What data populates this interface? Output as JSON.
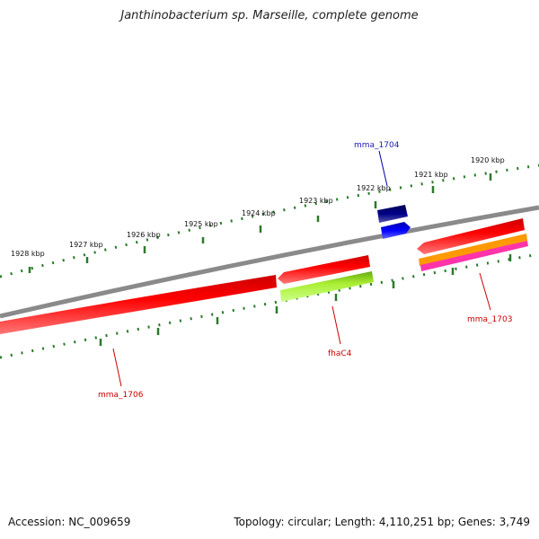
{
  "title": "Janthinobacterium sp. Marseille, complete genome",
  "footer": {
    "accession": "Accession: NC_009659",
    "summary": "Topology: circular; Length: 4,110,251 bp; Genes: 3,749"
  },
  "ticks": [
    "1928 kbp",
    "1927 kbp",
    "1926 kbp",
    "1925 kbp",
    "1924 kbp",
    "1923 kbp",
    "1922 kbp",
    "1921 kbp",
    "1920 kbp"
  ],
  "genes": [
    {
      "name": "mma_1704",
      "color": "#1a1ab0"
    },
    {
      "name": "mma_1703",
      "color": "#cc0000"
    },
    {
      "name": "fhaC4",
      "color": "#cc0000"
    },
    {
      "name": "mma_1706",
      "color": "#cc0000"
    }
  ],
  "colors": {
    "backbone": "#888888",
    "tick": "#2a7a2a",
    "red": "#ff0000",
    "green": "#99ee22",
    "orange": "#ff9900",
    "magenta": "#ff33aa",
    "blue": "#0000ff",
    "navy": "#000088"
  }
}
